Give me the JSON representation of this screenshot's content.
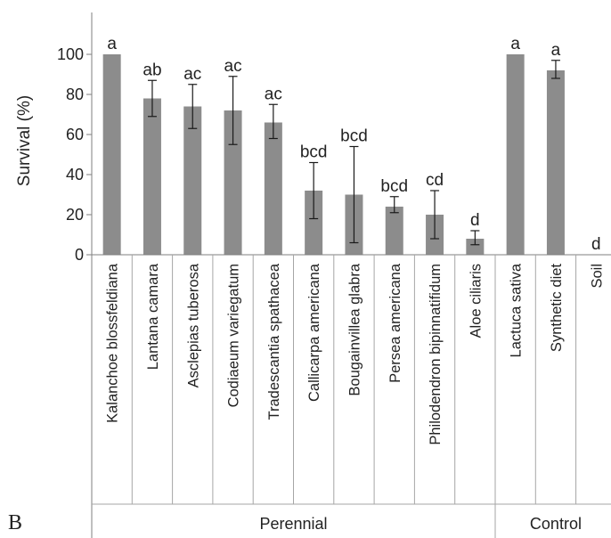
{
  "panel_label": "B",
  "chart_data": {
    "type": "bar",
    "title": "",
    "xlabel": "",
    "ylabel": "Survival (%)",
    "ylim": [
      0,
      120
    ],
    "yticks": [
      0,
      20,
      40,
      60,
      80,
      100
    ],
    "grid": false,
    "bar_color": "#8c8c8c",
    "categories": [
      "Kalanchoe blossfeldiana",
      "Lantana camara",
      "Asclepias tuberosa",
      "Codiaeum variegatum",
      "Tradescantia spathacea",
      "Callicarpa americana",
      "Bougainvillea glabra",
      "Persea americana",
      "Philodendron bipinnatifidum",
      "Aloe ciliaris",
      "Lactuca sativa",
      "Synthetic diet",
      "Soil"
    ],
    "values": [
      100,
      78,
      74,
      72,
      66,
      32,
      30,
      24,
      20,
      8,
      100,
      92,
      0
    ],
    "error_low": [
      100,
      69,
      63,
      55,
      58,
      18,
      6,
      21,
      8,
      5,
      100,
      88,
      0
    ],
    "error_high": [
      100,
      87,
      85,
      89,
      75,
      46,
      54,
      29,
      32,
      12,
      100,
      97,
      0
    ],
    "significance_letters": [
      "a",
      "ab",
      "ac",
      "ac",
      "ac",
      "bcd",
      "bcd",
      "bcd",
      "cd",
      "d",
      "a",
      "a",
      "d"
    ],
    "groups": [
      {
        "name": "Perennial",
        "start": 0,
        "end": 9
      },
      {
        "name": "Control",
        "start": 10,
        "end": 12
      }
    ]
  }
}
